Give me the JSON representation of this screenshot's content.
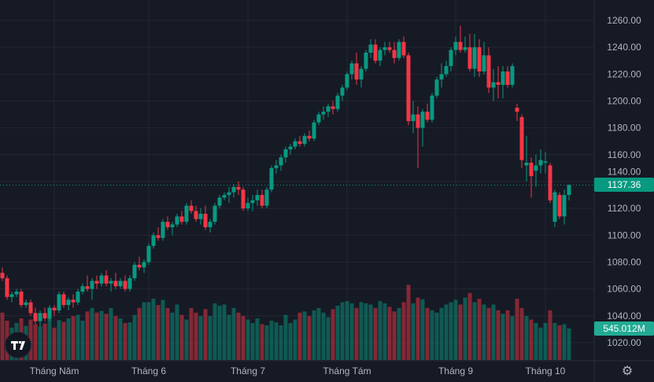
{
  "chart_data": {
    "type": "candlestick",
    "title": "",
    "price_axis": {
      "ticks": [
        "1020.00",
        "1040.00",
        "1060.00",
        "1080.00",
        "1100.00",
        "1120.00",
        "1140.00",
        "1160.00",
        "1180.00",
        "1200.00",
        "1220.00",
        "1240.00",
        "1260.00"
      ],
      "range": [
        1015,
        1266
      ]
    },
    "x_ticks": [
      {
        "label": "Tháng Năm",
        "index": 11
      },
      {
        "label": "Tháng 6",
        "index": 31
      },
      {
        "label": "Tháng 7",
        "index": 52
      },
      {
        "label": "Tháng Tám",
        "index": 73
      },
      {
        "label": "Tháng 9",
        "index": 96
      },
      {
        "label": "Tháng 10",
        "index": 115
      }
    ],
    "last_price_label": "1137.36",
    "last_volume_label": "545.012M",
    "volume_unit": "M",
    "grid": true,
    "colors": {
      "up": "#089981",
      "down": "#f23645",
      "background": "#161a25",
      "grid": "#242733",
      "text": "#b2b5be"
    },
    "candle_fields": [
      "open",
      "high",
      "low",
      "close",
      "volume"
    ],
    "candles": [
      [
        1072,
        1076,
        1066,
        1068,
        820
      ],
      [
        1068,
        1070,
        1052,
        1054,
        680
      ],
      [
        1054,
        1058,
        1050,
        1056,
        560
      ],
      [
        1056,
        1060,
        1054,
        1058,
        640
      ],
      [
        1058,
        1060,
        1046,
        1048,
        720
      ],
      [
        1048,
        1052,
        1046,
        1050,
        590
      ],
      [
        1050,
        1052,
        1040,
        1042,
        700
      ],
      [
        1042,
        1046,
        1034,
        1036,
        620
      ],
      [
        1036,
        1044,
        1032,
        1042,
        580
      ],
      [
        1042,
        1046,
        1036,
        1038,
        630
      ],
      [
        1038,
        1048,
        1036,
        1046,
        740
      ],
      [
        1046,
        1048,
        1040,
        1044,
        560
      ],
      [
        1044,
        1058,
        1042,
        1056,
        690
      ],
      [
        1056,
        1058,
        1046,
        1048,
        660
      ],
      [
        1048,
        1054,
        1044,
        1052,
        720
      ],
      [
        1052,
        1056,
        1046,
        1050,
        760
      ],
      [
        1050,
        1060,
        1048,
        1058,
        780
      ],
      [
        1058,
        1064,
        1056,
        1062,
        680
      ],
      [
        1062,
        1070,
        1058,
        1060,
        840
      ],
      [
        1060,
        1068,
        1052,
        1066,
        900
      ],
      [
        1066,
        1070,
        1060,
        1064,
        820
      ],
      [
        1064,
        1072,
        1062,
        1070,
        850
      ],
      [
        1070,
        1074,
        1062,
        1064,
        800
      ],
      [
        1064,
        1068,
        1058,
        1066,
        900
      ],
      [
        1066,
        1072,
        1060,
        1062,
        760
      ],
      [
        1062,
        1068,
        1060,
        1066,
        720
      ],
      [
        1066,
        1070,
        1058,
        1060,
        640
      ],
      [
        1060,
        1070,
        1058,
        1068,
        650
      ],
      [
        1068,
        1080,
        1066,
        1078,
        780
      ],
      [
        1078,
        1084,
        1074,
        1076,
        900
      ],
      [
        1076,
        1082,
        1072,
        1080,
        1000
      ],
      [
        1080,
        1094,
        1078,
        1092,
        1000
      ],
      [
        1092,
        1102,
        1090,
        1100,
        1060
      ],
      [
        1100,
        1106,
        1096,
        1098,
        950
      ],
      [
        1098,
        1112,
        1096,
        1110,
        1040
      ],
      [
        1110,
        1114,
        1104,
        1106,
        900
      ],
      [
        1106,
        1110,
        1100,
        1108,
        820
      ],
      [
        1108,
        1116,
        1106,
        1114,
        960
      ],
      [
        1114,
        1118,
        1108,
        1110,
        780
      ],
      [
        1110,
        1124,
        1108,
        1122,
        700
      ],
      [
        1122,
        1126,
        1116,
        1118,
        900
      ],
      [
        1118,
        1122,
        1110,
        1112,
        820
      ],
      [
        1112,
        1120,
        1108,
        1116,
        760
      ],
      [
        1116,
        1122,
        1104,
        1106,
        880
      ],
      [
        1106,
        1112,
        1102,
        1110,
        760
      ],
      [
        1110,
        1124,
        1108,
        1122,
        980
      ],
      [
        1122,
        1130,
        1120,
        1128,
        940
      ],
      [
        1128,
        1132,
        1126,
        1130,
        960
      ],
      [
        1130,
        1136,
        1124,
        1132,
        780
      ],
      [
        1132,
        1138,
        1128,
        1136,
        900
      ],
      [
        1136,
        1140,
        1130,
        1134,
        820
      ],
      [
        1134,
        1136,
        1118,
        1120,
        760
      ],
      [
        1120,
        1128,
        1118,
        1124,
        700
      ],
      [
        1124,
        1130,
        1118,
        1126,
        640
      ],
      [
        1126,
        1134,
        1122,
        1130,
        720
      ],
      [
        1130,
        1134,
        1120,
        1122,
        620
      ],
      [
        1122,
        1136,
        1120,
        1134,
        600
      ],
      [
        1134,
        1152,
        1132,
        1150,
        680
      ],
      [
        1150,
        1156,
        1146,
        1152,
        650
      ],
      [
        1152,
        1160,
        1148,
        1158,
        600
      ],
      [
        1158,
        1166,
        1154,
        1164,
        780
      ],
      [
        1164,
        1168,
        1160,
        1166,
        640
      ],
      [
        1166,
        1172,
        1164,
        1170,
        700
      ],
      [
        1170,
        1174,
        1166,
        1168,
        820
      ],
      [
        1168,
        1176,
        1166,
        1174,
        840
      ],
      [
        1174,
        1178,
        1170,
        1172,
        760
      ],
      [
        1172,
        1186,
        1170,
        1184,
        860
      ],
      [
        1184,
        1192,
        1182,
        1190,
        900
      ],
      [
        1190,
        1196,
        1186,
        1192,
        820
      ],
      [
        1192,
        1198,
        1188,
        1196,
        740
      ],
      [
        1196,
        1200,
        1190,
        1194,
        880
      ],
      [
        1194,
        1206,
        1192,
        1204,
        940
      ],
      [
        1204,
        1212,
        1200,
        1210,
        1000
      ],
      [
        1210,
        1222,
        1208,
        1220,
        1020
      ],
      [
        1220,
        1230,
        1216,
        1228,
        980
      ],
      [
        1228,
        1236,
        1212,
        1216,
        900
      ],
      [
        1216,
        1226,
        1210,
        1224,
        1000
      ],
      [
        1224,
        1238,
        1222,
        1236,
        980
      ],
      [
        1236,
        1246,
        1232,
        1242,
        960
      ],
      [
        1242,
        1246,
        1228,
        1230,
        900
      ],
      [
        1230,
        1240,
        1226,
        1238,
        1020
      ],
      [
        1238,
        1244,
        1234,
        1240,
        980
      ],
      [
        1240,
        1244,
        1236,
        1238,
        920
      ],
      [
        1238,
        1244,
        1228,
        1232,
        840
      ],
      [
        1232,
        1246,
        1230,
        1244,
        900
      ],
      [
        1244,
        1248,
        1232,
        1234,
        1000
      ],
      [
        1234,
        1236,
        1182,
        1185,
        1300
      ],
      [
        1185,
        1200,
        1176,
        1190,
        980
      ],
      [
        1190,
        1196,
        1150,
        1180,
        1080
      ],
      [
        1180,
        1194,
        1166,
        1192,
        1050
      ],
      [
        1192,
        1198,
        1184,
        1186,
        900
      ],
      [
        1186,
        1206,
        1184,
        1204,
        860
      ],
      [
        1204,
        1218,
        1202,
        1216,
        820
      ],
      [
        1216,
        1228,
        1210,
        1220,
        900
      ],
      [
        1220,
        1230,
        1218,
        1226,
        960
      ],
      [
        1226,
        1240,
        1222,
        1238,
        1000
      ],
      [
        1238,
        1248,
        1234,
        1244,
        1040
      ],
      [
        1244,
        1256,
        1236,
        1238,
        960
      ],
      [
        1238,
        1248,
        1236,
        1240,
        1080
      ],
      [
        1240,
        1250,
        1222,
        1224,
        1160
      ],
      [
        1224,
        1250,
        1218,
        1240,
        1000
      ],
      [
        1240,
        1246,
        1218,
        1222,
        1060
      ],
      [
        1222,
        1244,
        1220,
        1234,
        960
      ],
      [
        1234,
        1240,
        1206,
        1210,
        900
      ],
      [
        1210,
        1224,
        1200,
        1214,
        960
      ],
      [
        1214,
        1226,
        1202,
        1212,
        860
      ],
      [
        1212,
        1226,
        1202,
        1222,
        800
      ],
      [
        1222,
        1226,
        1210,
        1212,
        860
      ],
      [
        1212,
        1228,
        1210,
        1226,
        760
      ],
      [
        1195,
        1198,
        1185,
        1192,
        1060
      ],
      [
        1188,
        1190,
        1150,
        1156,
        900
      ],
      [
        1152,
        1174,
        1140,
        1154,
        760
      ],
      [
        1154,
        1158,
        1128,
        1144,
        700
      ],
      [
        1148,
        1160,
        1136,
        1152,
        640
      ],
      [
        1152,
        1164,
        1146,
        1156,
        560
      ],
      [
        1154,
        1162,
        1146,
        1155,
        640
      ],
      [
        1152,
        1154,
        1124,
        1126,
        860
      ],
      [
        1110,
        1134,
        1106,
        1132,
        640
      ],
      [
        1130,
        1132,
        1112,
        1114,
        600
      ],
      [
        1114,
        1134,
        1108,
        1130,
        620
      ],
      [
        1130,
        1138,
        1126,
        1137.36,
        545.012
      ]
    ]
  },
  "ui": {
    "settings_icon": "gear-icon",
    "logo": "TV"
  }
}
